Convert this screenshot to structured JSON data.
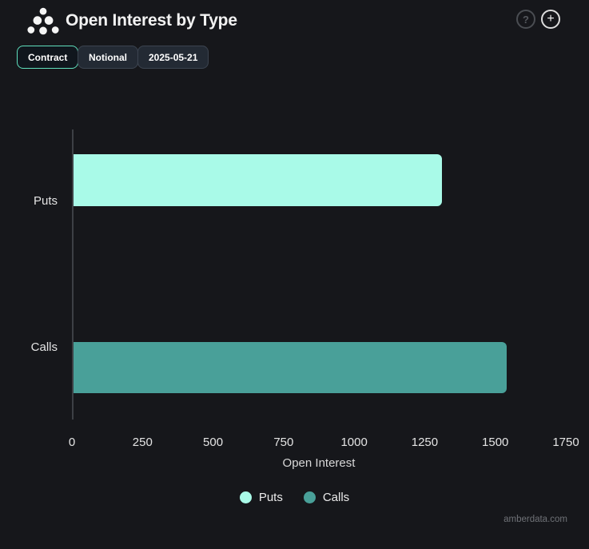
{
  "header": {
    "title": "Open Interest by Type",
    "help_label": "?",
    "add_label": "+"
  },
  "toolbar": {
    "contract_label": "Contract",
    "notional_label": "Notional",
    "date_label": "2025-05-21"
  },
  "chart_data": {
    "type": "bar",
    "orientation": "horizontal",
    "title": "Open Interest by Type",
    "categories": [
      "Puts",
      "Calls"
    ],
    "values": [
      1310,
      1540
    ],
    "bar_colors": [
      "#a9fae8",
      "#49a099"
    ],
    "xlabel": "Open Interest",
    "xlim": [
      0,
      1750
    ],
    "xticks": [
      0,
      250,
      500,
      750,
      1000,
      1250,
      1500,
      1750
    ],
    "grid": false,
    "legend": {
      "position": "bottom",
      "entries": [
        {
          "label": "Puts",
          "color": "#a9fae8"
        },
        {
          "label": "Calls",
          "color": "#49a099"
        }
      ]
    }
  },
  "footer": {
    "watermark": "amberdata.com"
  },
  "colors": {
    "background": "#16171b",
    "accent": "#5fe0bd",
    "axis_line": "#3d4045",
    "inactive_border": "#3c4450"
  }
}
